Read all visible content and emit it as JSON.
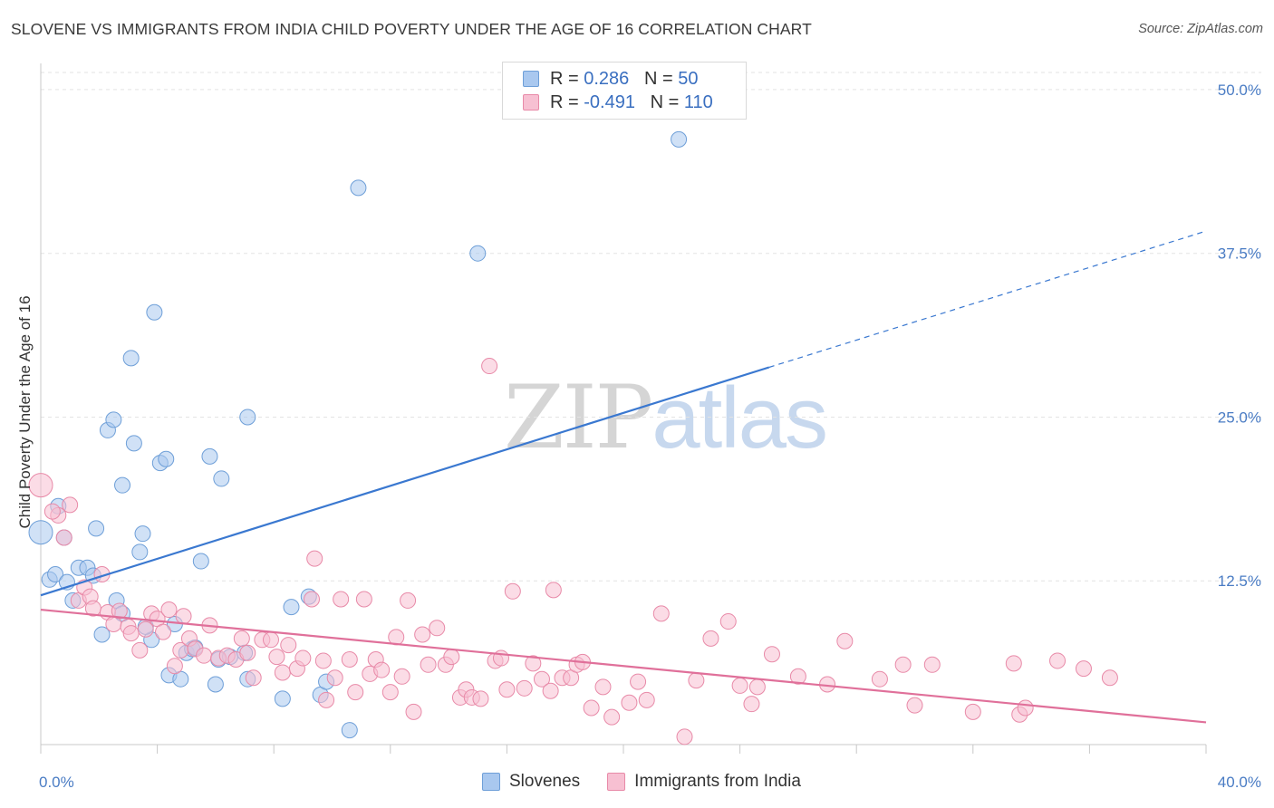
{
  "header": {
    "title": "SLOVENE VS IMMIGRANTS FROM INDIA CHILD POVERTY UNDER THE AGE OF 16 CORRELATION CHART",
    "source": "Source: ZipAtlas.com"
  },
  "legend": {
    "rows": [
      {
        "r_label": "R = ",
        "r_value": "0.286",
        "n_label": "N = ",
        "n_value": "50",
        "color": "#a9c8ef",
        "stroke": "#6e9fd8"
      },
      {
        "r_label": "R = ",
        "r_value": "-0.491",
        "n_label": "N = ",
        "n_value": "110",
        "color": "#f7c0d2",
        "stroke": "#e88aa8"
      }
    ]
  },
  "watermark": {
    "zip": "ZIP",
    "atlas": "atlas"
  },
  "chart_data": {
    "type": "scatter",
    "title": "SLOVENE VS IMMIGRANTS FROM INDIA CHILD POVERTY UNDER THE AGE OF 16 CORRELATION CHART",
    "xlabel": "",
    "ylabel": "Child Poverty Under the Age of 16",
    "xlim": [
      0,
      40
    ],
    "ylim": [
      0,
      52
    ],
    "x_tick_labels": [
      {
        "value": 0,
        "label": "0.0%"
      },
      {
        "value": 40,
        "label": "40.0%"
      }
    ],
    "y_tick_labels": [
      {
        "value": 12.5,
        "label": "12.5%"
      },
      {
        "value": 25,
        "label": "25.0%"
      },
      {
        "value": 37.5,
        "label": "37.5%"
      },
      {
        "value": 50,
        "label": "50.0%"
      }
    ],
    "grid": true,
    "series": [
      {
        "name": "Slovenes",
        "color": "#a9c8ef",
        "stroke": "#6e9fd8",
        "line_color": "#3a78d0",
        "trend": {
          "x0": 0,
          "y0": 11.4,
          "x1": 25,
          "y1": 28.8,
          "dash_to_x": 40,
          "dash_to_y": 39.2
        },
        "points": [
          [
            0.0,
            16.2
          ],
          [
            0.3,
            12.6
          ],
          [
            0.5,
            13.0
          ],
          [
            0.6,
            18.2
          ],
          [
            0.8,
            15.8
          ],
          [
            0.9,
            12.4
          ],
          [
            1.1,
            11.0
          ],
          [
            1.3,
            13.5
          ],
          [
            1.6,
            13.5
          ],
          [
            1.8,
            12.9
          ],
          [
            1.9,
            16.5
          ],
          [
            2.1,
            8.4
          ],
          [
            2.3,
            24.0
          ],
          [
            2.5,
            24.8
          ],
          [
            2.6,
            11.0
          ],
          [
            2.8,
            10.0
          ],
          [
            2.8,
            19.8
          ],
          [
            3.1,
            29.5
          ],
          [
            3.2,
            23.0
          ],
          [
            3.4,
            14.7
          ],
          [
            3.5,
            16.1
          ],
          [
            3.8,
            8.0
          ],
          [
            3.9,
            33.0
          ],
          [
            4.1,
            21.5
          ],
          [
            4.3,
            21.8
          ],
          [
            4.4,
            5.3
          ],
          [
            4.6,
            9.2
          ],
          [
            4.8,
            5.0
          ],
          [
            5.0,
            7.0
          ],
          [
            5.2,
            7.3
          ],
          [
            5.3,
            7.4
          ],
          [
            5.5,
            14.0
          ],
          [
            5.8,
            22.0
          ],
          [
            6.0,
            4.6
          ],
          [
            6.1,
            6.5
          ],
          [
            6.2,
            20.3
          ],
          [
            6.5,
            6.7
          ],
          [
            7.0,
            7.0
          ],
          [
            7.1,
            5.0
          ],
          [
            7.1,
            25.0
          ],
          [
            8.3,
            3.5
          ],
          [
            8.6,
            10.5
          ],
          [
            9.2,
            11.3
          ],
          [
            9.6,
            3.8
          ],
          [
            9.8,
            4.8
          ],
          [
            10.6,
            1.1
          ],
          [
            10.9,
            42.5
          ],
          [
            15.0,
            37.5
          ],
          [
            21.9,
            46.2
          ],
          [
            3.6,
            9.0
          ]
        ]
      },
      {
        "name": "Immigrants from India",
        "color": "#f7c0d2",
        "stroke": "#e88aa8",
        "line_color": "#e0709a",
        "trend": {
          "x0": 0,
          "y0": 10.3,
          "x1": 40,
          "y1": 1.7
        },
        "points": [
          [
            0.0,
            19.8
          ],
          [
            0.6,
            17.5
          ],
          [
            0.8,
            15.8
          ],
          [
            1.0,
            18.3
          ],
          [
            1.3,
            11.0
          ],
          [
            1.5,
            12.0
          ],
          [
            1.7,
            11.3
          ],
          [
            1.8,
            10.4
          ],
          [
            2.1,
            13.0
          ],
          [
            2.3,
            10.1
          ],
          [
            2.5,
            9.2
          ],
          [
            2.7,
            10.2
          ],
          [
            3.0,
            9.0
          ],
          [
            3.1,
            8.5
          ],
          [
            3.4,
            7.2
          ],
          [
            3.6,
            8.8
          ],
          [
            3.8,
            10.0
          ],
          [
            4.0,
            9.6
          ],
          [
            4.2,
            8.6
          ],
          [
            4.4,
            10.3
          ],
          [
            4.6,
            6.0
          ],
          [
            4.8,
            7.2
          ],
          [
            4.9,
            9.8
          ],
          [
            5.1,
            8.1
          ],
          [
            5.3,
            7.3
          ],
          [
            5.6,
            6.8
          ],
          [
            5.8,
            9.1
          ],
          [
            6.1,
            6.6
          ],
          [
            6.4,
            6.8
          ],
          [
            6.7,
            6.5
          ],
          [
            6.9,
            8.1
          ],
          [
            7.1,
            7.0
          ],
          [
            7.3,
            5.1
          ],
          [
            7.6,
            8.0
          ],
          [
            7.9,
            8.0
          ],
          [
            8.1,
            6.7
          ],
          [
            8.3,
            5.5
          ],
          [
            8.5,
            7.6
          ],
          [
            8.8,
            5.8
          ],
          [
            9.0,
            6.6
          ],
          [
            9.3,
            11.1
          ],
          [
            9.4,
            14.2
          ],
          [
            9.7,
            6.4
          ],
          [
            9.8,
            3.4
          ],
          [
            10.1,
            5.1
          ],
          [
            10.3,
            11.1
          ],
          [
            10.6,
            6.5
          ],
          [
            10.8,
            4.0
          ],
          [
            11.1,
            11.1
          ],
          [
            11.3,
            5.4
          ],
          [
            11.5,
            6.5
          ],
          [
            11.7,
            5.7
          ],
          [
            12.0,
            4.0
          ],
          [
            12.2,
            8.2
          ],
          [
            12.4,
            5.2
          ],
          [
            12.6,
            11.0
          ],
          [
            12.8,
            2.5
          ],
          [
            13.1,
            8.4
          ],
          [
            13.3,
            6.1
          ],
          [
            13.6,
            8.9
          ],
          [
            13.9,
            6.1
          ],
          [
            14.1,
            6.7
          ],
          [
            14.4,
            3.6
          ],
          [
            14.6,
            4.2
          ],
          [
            14.8,
            3.6
          ],
          [
            15.1,
            3.5
          ],
          [
            15.4,
            28.9
          ],
          [
            15.6,
            6.4
          ],
          [
            15.8,
            6.6
          ],
          [
            16.0,
            4.2
          ],
          [
            16.2,
            11.7
          ],
          [
            16.6,
            4.3
          ],
          [
            16.9,
            6.2
          ],
          [
            17.2,
            5.0
          ],
          [
            17.5,
            4.1
          ],
          [
            17.6,
            11.8
          ],
          [
            17.9,
            5.1
          ],
          [
            18.2,
            5.1
          ],
          [
            18.4,
            6.1
          ],
          [
            18.6,
            6.3
          ],
          [
            18.9,
            2.8
          ],
          [
            19.3,
            4.4
          ],
          [
            19.6,
            2.1
          ],
          [
            20.2,
            3.2
          ],
          [
            20.5,
            4.8
          ],
          [
            20.8,
            3.4
          ],
          [
            21.3,
            10.0
          ],
          [
            22.1,
            0.6
          ],
          [
            22.5,
            4.9
          ],
          [
            23.0,
            8.1
          ],
          [
            23.6,
            9.4
          ],
          [
            24.0,
            4.5
          ],
          [
            24.4,
            3.1
          ],
          [
            24.6,
            4.4
          ],
          [
            25.1,
            6.9
          ],
          [
            26.0,
            5.2
          ],
          [
            27.0,
            4.6
          ],
          [
            27.6,
            7.9
          ],
          [
            28.8,
            5.0
          ],
          [
            29.6,
            6.1
          ],
          [
            30.0,
            3.0
          ],
          [
            30.6,
            6.1
          ],
          [
            32.0,
            2.5
          ],
          [
            33.4,
            6.2
          ],
          [
            33.6,
            2.3
          ],
          [
            33.8,
            2.8
          ],
          [
            34.9,
            6.4
          ],
          [
            35.8,
            5.8
          ],
          [
            36.7,
            5.1
          ],
          [
            0.4,
            17.8
          ]
        ]
      }
    ]
  }
}
